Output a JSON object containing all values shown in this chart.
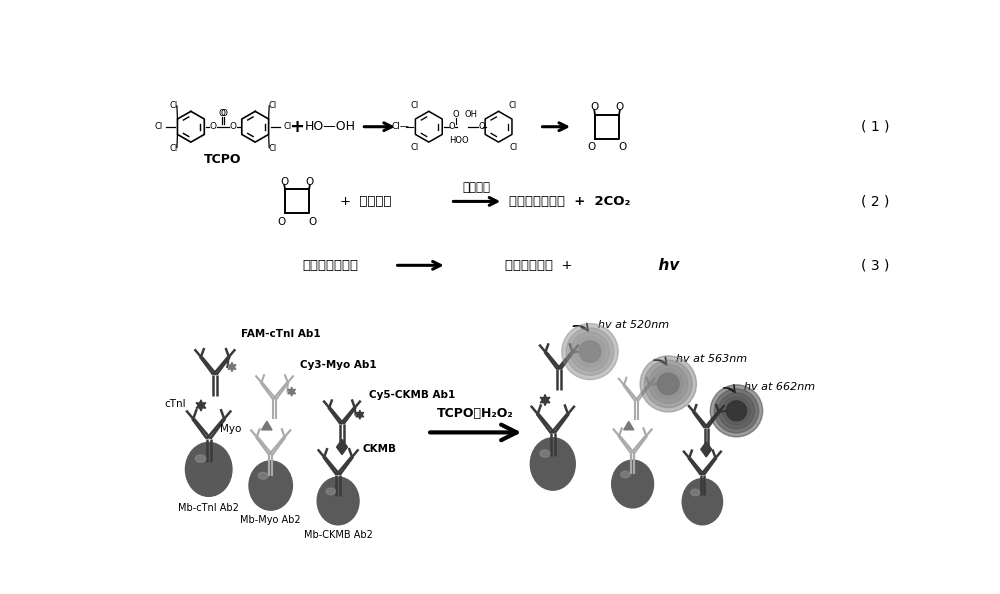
{
  "bg_color": "#ffffff",
  "eq1_label": "( 1 )",
  "eq2_label": "( 2 )",
  "eq3_label": "( 3 )",
  "tcpo_label": "TCPO",
  "hooh": "HO—OH",
  "arrow_color": "#000000",
  "text_color": "#000000",
  "eq2_fluorophore": "荧光基团",
  "eq2_energy": "能量转移",
  "eq2_excited": "激发态荧光基团",
  "eq2_co2": "2CO₂",
  "eq3_excited": "激发态荧光基团",
  "eq3_ground": "基态荧光基团",
  "eq3_hv": "hv",
  "tcpo_h2o2": "TCPO、H₂O₂",
  "label_fam": "FAM-cTnI Ab1",
  "label_cy3": "Cy3-Myo Ab1",
  "label_cy5": "Cy5-CKMB Ab1",
  "label_ctnI": "cTnI",
  "label_myo": "Myo",
  "label_ckmb": "CKMB",
  "label_mb1": "Mb-cTnI Ab2",
  "label_mb2": "Mb-Myo Ab2",
  "label_mb3": "Mb-CKMB Ab2",
  "label_hv1": "hv at 520nm",
  "label_hv2": "hv at 563nm",
  "label_hv3": "hv at 662nm",
  "gray_dark": "#3a3a3a",
  "gray_med": "#777777",
  "gray_light": "#aaaaaa",
  "gray_bead": "#606060",
  "gray_bead2": "#707070"
}
